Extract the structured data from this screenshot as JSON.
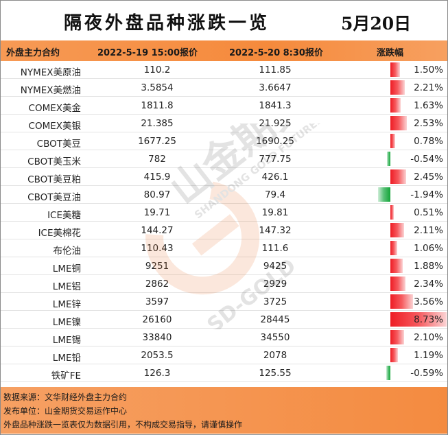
{
  "title": "隔夜外盘品种涨跌一览",
  "date": "5月20日",
  "headers": {
    "name": "外盘主力合约",
    "price1": "2022-5-19 15:00报价",
    "price2": "2022-5-20 8:30报价",
    "change": "涨跌幅"
  },
  "rows": [
    {
      "name": "NYMEX美原油",
      "p1": "110.2",
      "p2": "111.85",
      "pct": "1.50%",
      "value": 1.5
    },
    {
      "name": "NYMEX美燃油",
      "p1": "3.5854",
      "p2": "3.6647",
      "pct": "2.21%",
      "value": 2.21
    },
    {
      "name": "COMEX美金",
      "p1": "1811.8",
      "p2": "1841.3",
      "pct": "1.63%",
      "value": 1.63
    },
    {
      "name": "COMEX美银",
      "p1": "21.385",
      "p2": "21.925",
      "pct": "2.53%",
      "value": 2.53
    },
    {
      "name": "CBOT美豆",
      "p1": "1677.25",
      "p2": "1690.25",
      "pct": "0.78%",
      "value": 0.78
    },
    {
      "name": "CBOT美玉米",
      "p1": "782",
      "p2": "777.75",
      "pct": "-0.54%",
      "value": -0.54
    },
    {
      "name": "CBOT美豆粕",
      "p1": "415.9",
      "p2": "426.1",
      "pct": "2.45%",
      "value": 2.45
    },
    {
      "name": "CBOT美豆油",
      "p1": "80.97",
      "p2": "79.4",
      "pct": "-1.94%",
      "value": -1.94
    },
    {
      "name": "ICE美糖",
      "p1": "19.71",
      "p2": "19.81",
      "pct": "0.51%",
      "value": 0.51
    },
    {
      "name": "ICE美棉花",
      "p1": "144.27",
      "p2": "147.32",
      "pct": "2.11%",
      "value": 2.11
    },
    {
      "name": "布伦油",
      "p1": "110.43",
      "p2": "111.6",
      "pct": "1.06%",
      "value": 1.06
    },
    {
      "name": "LME铜",
      "p1": "9251",
      "p2": "9425",
      "pct": "1.88%",
      "value": 1.88
    },
    {
      "name": "LME铝",
      "p1": "2862",
      "p2": "2929",
      "pct": "2.34%",
      "value": 2.34
    },
    {
      "name": "LME锌",
      "p1": "3597",
      "p2": "3725",
      "pct": "3.56%",
      "value": 3.56
    },
    {
      "name": "LME镍",
      "p1": "26160",
      "p2": "28445",
      "pct": "8.73%",
      "value": 8.73
    },
    {
      "name": "LME锡",
      "p1": "33840",
      "p2": "34550",
      "pct": "2.10%",
      "value": 2.1
    },
    {
      "name": "LME铅",
      "p1": "2053.5",
      "p2": "2078",
      "pct": "1.19%",
      "value": 1.19
    },
    {
      "name": "铁矿FE",
      "p1": "126.3",
      "p2": "125.55",
      "pct": "-0.59%",
      "value": -0.59
    }
  ],
  "footer": {
    "source": "数据来源：文华财经外盘主力合约",
    "publisher": "发布单位：山金期货交易运作中心",
    "disclaimer": "外盘品种涨跌一览表仅为数据引用，不构成交易指导，请谨慎操作"
  },
  "watermark": {
    "cn": "山金期货",
    "en": "SHANDONG GOLD FUTURES",
    "mark": "SD-GOLD"
  },
  "colors": {
    "accent_orange": "#f58a3c",
    "up_red": "#ee1c24",
    "down_green": "#13a538"
  }
}
